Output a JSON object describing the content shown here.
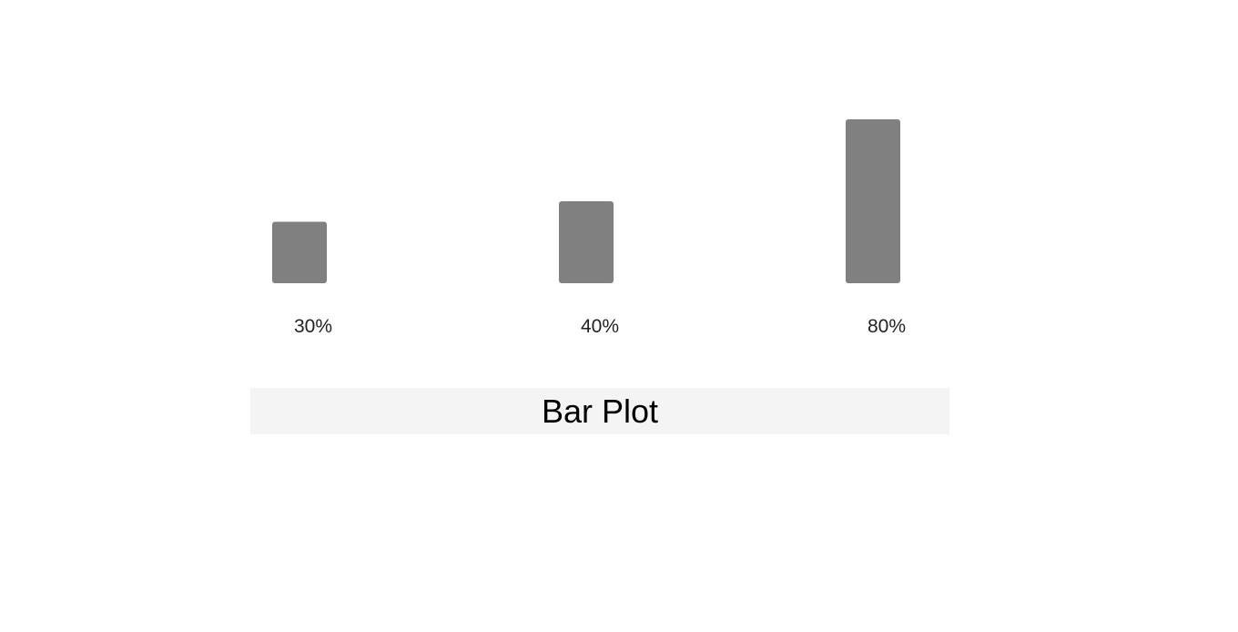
{
  "chart_data": {
    "type": "bar",
    "title": "Bar Plot",
    "categories": [
      "",
      "",
      ""
    ],
    "values": [
      30,
      40,
      80
    ],
    "value_labels": [
      "30%",
      "40%",
      "80%"
    ],
    "unit": "%",
    "ylim": [
      0,
      100
    ],
    "grid": false,
    "bar_color": "#808080",
    "title_background": "#f4f4f4"
  }
}
